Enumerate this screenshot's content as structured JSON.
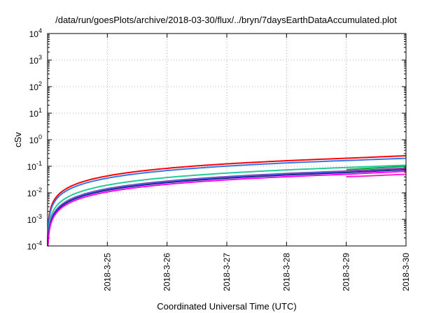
{
  "chart_data": {
    "type": "line",
    "title": "/data/run/goesPlots/archive/2018-03-30/flux/../bryn/7daysEarthDataAccumulated.plot",
    "xlabel": "Coordinated Universal Time (UTC)",
    "ylabel": "cSv",
    "yscale": "log",
    "xlim": [
      "2018-03-24",
      "2018-03-30"
    ],
    "ylim": [
      0.0001,
      10000
    ],
    "grid": "dotted",
    "legend": "none",
    "x_ticks": [
      "2018-3-25",
      "2018-3-26",
      "2018-3-27",
      "2018-3-28",
      "2018-3-29",
      "2018-3-30"
    ],
    "y_ticks": [
      {
        "value": 0.0001,
        "base": "10",
        "exp": "-4"
      },
      {
        "value": 0.001,
        "base": "10",
        "exp": "-3"
      },
      {
        "value": 0.01,
        "base": "10",
        "exp": "-2"
      },
      {
        "value": 0.1,
        "base": "10",
        "exp": "-1"
      },
      {
        "value": 1,
        "base": "10",
        "exp": "0"
      },
      {
        "value": 10,
        "base": "10",
        "exp": "1"
      },
      {
        "value": 100,
        "base": "10",
        "exp": "2"
      },
      {
        "value": 1000,
        "base": "10",
        "exp": "3"
      },
      {
        "value": 10000,
        "base": "10",
        "exp": "4"
      }
    ],
    "x_start": "2018-03-24",
    "x_end": "2018-03-30",
    "segments": [
      {
        "color": "#ff0000",
        "x_from": "2018-03-24",
        "x_to": "2018-03-29",
        "y_end": 0.2
      },
      {
        "color": "#ff0000",
        "x_from": "2018-03-29",
        "x_to": "2018-03-30",
        "y_start": 0.2,
        "y_end": 0.25
      },
      {
        "color": "#3377ee",
        "x_from": "2018-03-24",
        "x_to": "2018-03-29",
        "y_end": 0.165
      },
      {
        "color": "#3377ee",
        "x_from": "2018-03-29",
        "x_to": "2018-03-30",
        "y_start": 0.165,
        "y_end": 0.2
      },
      {
        "color": "#22cc99",
        "x_from": "2018-03-24",
        "x_to": "2018-03-29",
        "y_end": 0.09
      },
      {
        "color": "#22cc99",
        "x_from": "2018-03-29",
        "x_to": "2018-03-30",
        "y_start": 0.09,
        "y_end": 0.11
      },
      {
        "color": "#00aa44",
        "x_from": "2018-03-29",
        "x_to": "2018-03-30",
        "y_start": 0.075,
        "y_end": 0.1
      },
      {
        "color": "#8833aa",
        "x_from": "2018-03-24",
        "x_to": "2018-03-29",
        "y_end": 0.066
      },
      {
        "color": "#8833aa",
        "x_from": "2018-03-29",
        "x_to": "2018-03-30",
        "y_start": 0.066,
        "y_end": 0.085
      },
      {
        "color": "#4477ff",
        "x_from": "2018-03-24",
        "x_to": "2018-03-29",
        "y_end": 0.062
      },
      {
        "color": "#1a2a8a",
        "x_from": "2018-03-24",
        "x_to": "2018-03-29",
        "y_end": 0.058
      },
      {
        "color": "#1a2a8a",
        "x_from": "2018-03-29",
        "x_to": "2018-03-30",
        "y_start": 0.058,
        "y_end": 0.075
      },
      {
        "color": "#ff00ff",
        "x_from": "2018-03-24",
        "x_to": "2018-03-29",
        "y_end": 0.05
      },
      {
        "color": "#ff00ff",
        "x_from": "2018-03-29",
        "x_to": "2018-03-30",
        "y_start": 0.05,
        "y_end": 0.065
      },
      {
        "color": "#ff22cc",
        "x_from": "2018-03-29",
        "x_to": "2018-03-30",
        "y_start": 0.04,
        "y_end": 0.05
      }
    ]
  }
}
